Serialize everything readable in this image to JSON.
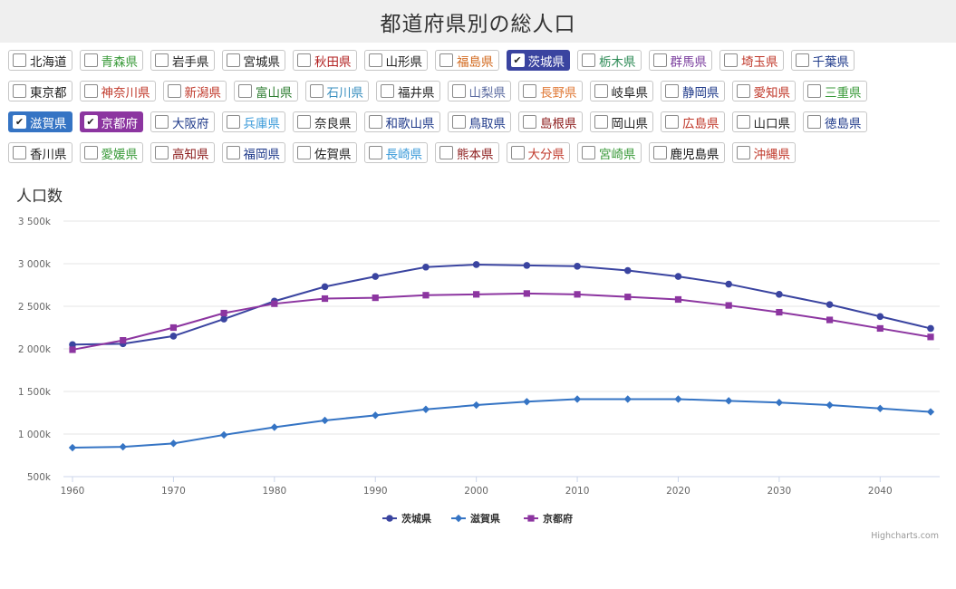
{
  "page_title": "都道府県別の総人口",
  "prefectures": [
    {
      "name": "北海道",
      "color": "#222222",
      "checked": false
    },
    {
      "name": "青森県",
      "color": "#3a9a3a",
      "checked": false
    },
    {
      "name": "岩手県",
      "color": "#222222",
      "checked": false
    },
    {
      "name": "宮城県",
      "color": "#222222",
      "checked": false
    },
    {
      "name": "秋田県",
      "color": "#b22222",
      "checked": false
    },
    {
      "name": "山形県",
      "color": "#222222",
      "checked": false
    },
    {
      "name": "福島県",
      "color": "#d2691e",
      "checked": false
    },
    {
      "name": "茨城県",
      "color": "#3a44a0",
      "checked": true
    },
    {
      "name": "栃木県",
      "color": "#2e8b57",
      "checked": false
    },
    {
      "name": "群馬県",
      "color": "#7b3f9e",
      "checked": false
    },
    {
      "name": "埼玉県",
      "color": "#c0392b",
      "checked": false
    },
    {
      "name": "千葉県",
      "color": "#1f3a8a",
      "checked": false
    },
    {
      "name": "東京都",
      "color": "#222222",
      "checked": false
    },
    {
      "name": "神奈川県",
      "color": "#c0392b",
      "checked": false
    },
    {
      "name": "新潟県",
      "color": "#c0392b",
      "checked": false
    },
    {
      "name": "富山県",
      "color": "#2e7d32",
      "checked": false
    },
    {
      "name": "石川県",
      "color": "#3a8fbf",
      "checked": false
    },
    {
      "name": "福井県",
      "color": "#222222",
      "checked": false
    },
    {
      "name": "山梨県",
      "color": "#5b6ba0",
      "checked": false
    },
    {
      "name": "長野県",
      "color": "#e07b39",
      "checked": false
    },
    {
      "name": "岐阜県",
      "color": "#222222",
      "checked": false
    },
    {
      "name": "静岡県",
      "color": "#1f3a8a",
      "checked": false
    },
    {
      "name": "愛知県",
      "color": "#c0392b",
      "checked": false
    },
    {
      "name": "三重県",
      "color": "#3a9a3a",
      "checked": false
    },
    {
      "name": "滋賀県",
      "color": "#3574c4",
      "checked": true
    },
    {
      "name": "京都府",
      "color": "#8c35a0",
      "checked": true
    },
    {
      "name": "大阪府",
      "color": "#1f3a8a",
      "checked": false
    },
    {
      "name": "兵庫県",
      "color": "#3a9ad9",
      "checked": false
    },
    {
      "name": "奈良県",
      "color": "#222222",
      "checked": false
    },
    {
      "name": "和歌山県",
      "color": "#1f3a8a",
      "checked": false
    },
    {
      "name": "鳥取県",
      "color": "#1f3a8a",
      "checked": false
    },
    {
      "name": "島根県",
      "color": "#8b1a1a",
      "checked": false
    },
    {
      "name": "岡山県",
      "color": "#222222",
      "checked": false
    },
    {
      "name": "広島県",
      "color": "#c0392b",
      "checked": false
    },
    {
      "name": "山口県",
      "color": "#222222",
      "checked": false
    },
    {
      "name": "徳島県",
      "color": "#1f3a8a",
      "checked": false
    },
    {
      "name": "香川県",
      "color": "#222222",
      "checked": false
    },
    {
      "name": "愛媛県",
      "color": "#3a9a3a",
      "checked": false
    },
    {
      "name": "高知県",
      "color": "#8b1a1a",
      "checked": false
    },
    {
      "name": "福岡県",
      "color": "#1f3a8a",
      "checked": false
    },
    {
      "name": "佐賀県",
      "color": "#222222",
      "checked": false
    },
    {
      "name": "長崎県",
      "color": "#3a9ad9",
      "checked": false
    },
    {
      "name": "熊本県",
      "color": "#8b1a1a",
      "checked": false
    },
    {
      "name": "大分県",
      "color": "#c0392b",
      "checked": false
    },
    {
      "name": "宮崎県",
      "color": "#3a9a3a",
      "checked": false
    },
    {
      "name": "鹿児島県",
      "color": "#111111",
      "checked": false
    },
    {
      "name": "沖縄県",
      "color": "#c0392b",
      "checked": false
    }
  ],
  "credits": "Highcharts.com",
  "chart_data": {
    "type": "line",
    "title": "",
    "ylabel": "人口数",
    "xlabel": "",
    "x": [
      1960,
      1965,
      1970,
      1975,
      1980,
      1985,
      1990,
      1995,
      2000,
      2005,
      2010,
      2015,
      2020,
      2025,
      2030,
      2035,
      2040,
      2045
    ],
    "xticks": [
      1960,
      1970,
      1980,
      1990,
      2000,
      2010,
      2020,
      2030,
      2040
    ],
    "xlim": [
      1960,
      2045
    ],
    "ylim": [
      500000,
      3500000
    ],
    "yticks": [
      500000,
      1000000,
      1500000,
      2000000,
      2500000,
      3000000,
      3500000
    ],
    "ytick_labels": [
      "500k",
      "1 000k",
      "1 500k",
      "2 000k",
      "2 500k",
      "3 000k",
      "3 500k"
    ],
    "grid": true,
    "legend_position": "bottom",
    "series": [
      {
        "name": "茨城県",
        "color": "#3a44a0",
        "marker": "circle",
        "values": [
          2050000,
          2060000,
          2150000,
          2350000,
          2560000,
          2730000,
          2850000,
          2960000,
          2990000,
          2980000,
          2970000,
          2920000,
          2850000,
          2760000,
          2640000,
          2520000,
          2380000,
          2240000
        ]
      },
      {
        "name": "滋賀県",
        "color": "#3574c4",
        "marker": "diamond",
        "values": [
          840000,
          850000,
          890000,
          990000,
          1080000,
          1160000,
          1220000,
          1290000,
          1340000,
          1380000,
          1410000,
          1410000,
          1410000,
          1390000,
          1370000,
          1340000,
          1300000,
          1260000
        ]
      },
      {
        "name": "京都府",
        "color": "#8c35a0",
        "marker": "square",
        "values": [
          1990000,
          2100000,
          2250000,
          2420000,
          2530000,
          2590000,
          2600000,
          2630000,
          2640000,
          2650000,
          2640000,
          2610000,
          2580000,
          2510000,
          2430000,
          2340000,
          2240000,
          2140000
        ]
      }
    ]
  }
}
